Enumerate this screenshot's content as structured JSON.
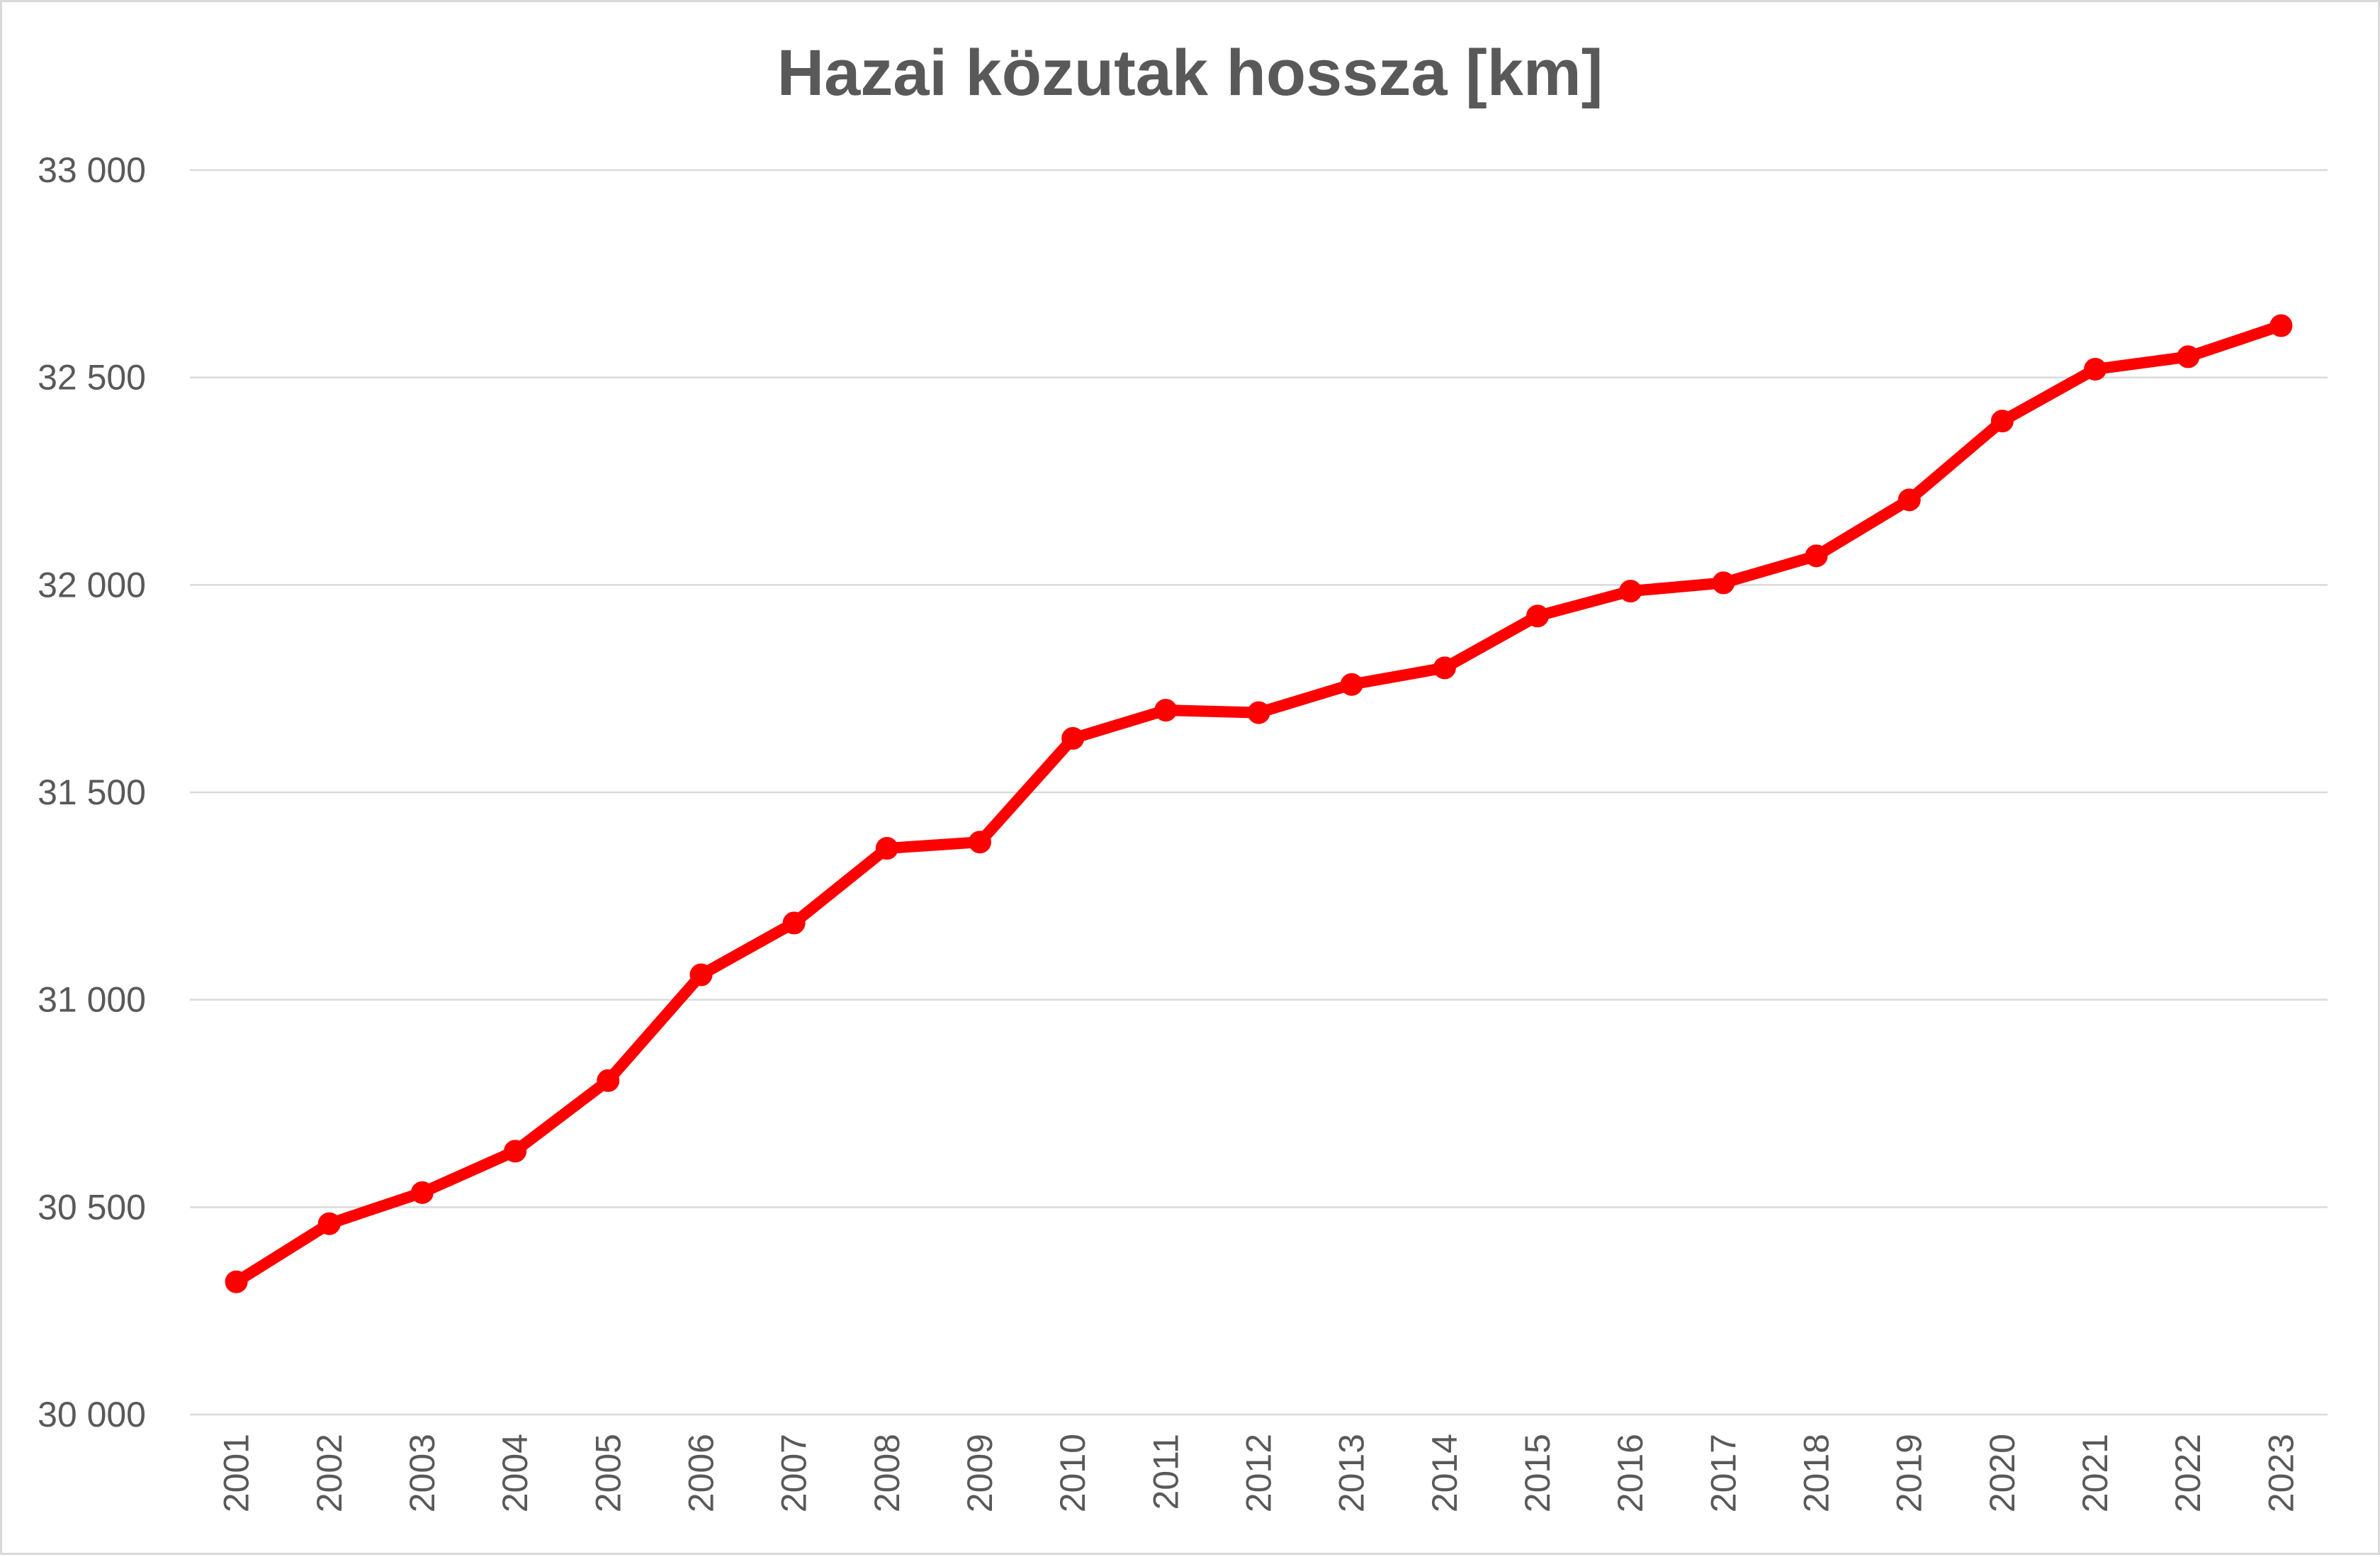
{
  "chart_data": {
    "type": "line",
    "title": "Hazai közutak hossza [km]",
    "xlabel": "",
    "ylabel": "",
    "categories": [
      "2001",
      "2002",
      "2003",
      "2004",
      "2005",
      "2006",
      "2007",
      "2008",
      "2009",
      "2010",
      "2011",
      "2012",
      "2013",
      "2014",
      "2015",
      "2016",
      "2017",
      "2018",
      "2019",
      "2020",
      "2021",
      "2022",
      "2023"
    ],
    "series": [
      {
        "values": [
          30320,
          30460,
          30535,
          30635,
          30805,
          31060,
          31185,
          31365,
          31380,
          31630,
          31698,
          31692,
          31760,
          31800,
          31925,
          31985,
          32005,
          32070,
          32205,
          32395,
          32520,
          32550,
          32625
        ],
        "color": "#ff0000"
      }
    ],
    "ylim": [
      30000,
      33000
    ],
    "yticks": [
      30000,
      30500,
      31000,
      31500,
      32000,
      32500,
      33000
    ],
    "ytick_labels": [
      "30 000",
      "30 500",
      "31 000",
      "31 500",
      "32 000",
      "32 500",
      "33 000"
    ],
    "grid": true,
    "legend": "none",
    "markers": true
  }
}
